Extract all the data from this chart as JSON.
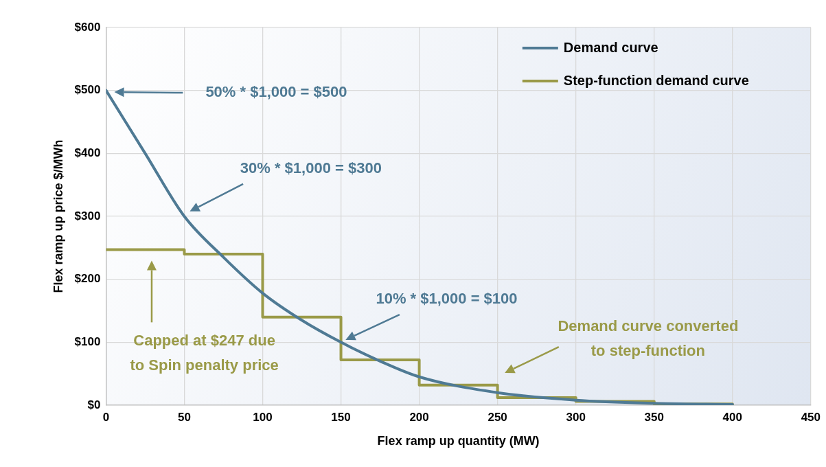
{
  "chart_data": {
    "type": "line",
    "xlabel": "Flex ramp up quantity (MW)",
    "ylabel": "Flex ramp up price $/MWh",
    "xlim": [
      0,
      450
    ],
    "xticks": [
      0,
      50,
      100,
      150,
      200,
      250,
      300,
      350,
      400,
      450
    ],
    "ylim": [
      0,
      600
    ],
    "yticks": [
      {
        "value": 0,
        "label": "$0"
      },
      {
        "value": 100,
        "label": "$100"
      },
      {
        "value": 200,
        "label": "$200"
      },
      {
        "value": 300,
        "label": "$300"
      },
      {
        "value": 400,
        "label": "$400"
      },
      {
        "value": 500,
        "label": "$500"
      },
      {
        "value": 600,
        "label": "$600"
      }
    ],
    "grid": true,
    "legend": "top right",
    "marker": "none",
    "line_style": "solid",
    "series": [
      {
        "name": "Demand curve",
        "color": "#4f7a94",
        "x": [
          0,
          25,
          50,
          75,
          100,
          125,
          150,
          175,
          200,
          250,
          300,
          350,
          400
        ],
        "values": [
          500,
          400,
          300,
          235,
          178,
          135,
          100,
          70,
          45,
          20,
          8,
          3,
          1
        ]
      },
      {
        "name": "Step-function demand curve",
        "type": "step",
        "color": "#9a9a48",
        "x": [
          0,
          50,
          100,
          150,
          200,
          250,
          300,
          350,
          400
        ],
        "values": [
          247,
          240,
          140,
          72,
          32,
          12,
          6,
          2,
          2
        ]
      }
    ],
    "annotations": [
      "50% * $1,000 = $500",
      "30% * $1,000 = $300",
      "10% * $1,000 = $100",
      "Capped at $247 due\nto Spin penalty price",
      "Demand curve converted\nto step-function"
    ]
  }
}
